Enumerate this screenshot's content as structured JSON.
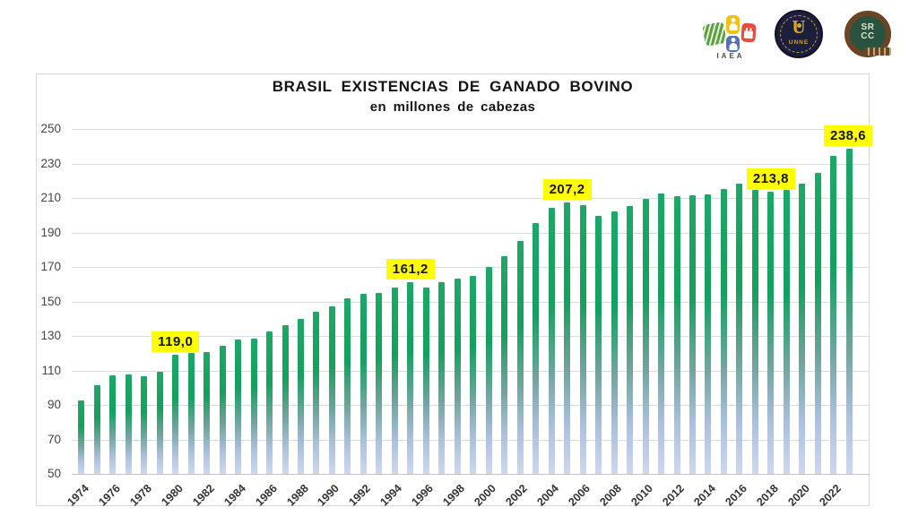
{
  "logos": {
    "iaea": {
      "label": "IAEA"
    },
    "unne": {
      "center_letter": "U",
      "label": "UNNE"
    },
    "srcc": {
      "line1": "SR",
      "line2": "CC"
    }
  },
  "chart": {
    "title": "BRASIL EXISTENCIAS DE GANADO BOVINO",
    "subtitle": "en millones de cabezas"
  },
  "chart_data": {
    "type": "bar",
    "title": "BRASIL EXISTENCIAS DE GANADO BOVINO",
    "subtitle": "en millones de cabezas",
    "unit": "millones de cabezas",
    "x": [
      1974,
      1975,
      1976,
      1977,
      1978,
      1979,
      1980,
      1981,
      1982,
      1983,
      1984,
      1985,
      1986,
      1987,
      1988,
      1989,
      1990,
      1991,
      1992,
      1993,
      1994,
      1995,
      1996,
      1997,
      1998,
      1999,
      2000,
      2001,
      2002,
      2003,
      2004,
      2005,
      2006,
      2007,
      2008,
      2009,
      2010,
      2011,
      2012,
      2013,
      2014,
      2015,
      2016,
      2017,
      2018,
      2019,
      2020,
      2021,
      2022,
      2023
    ],
    "values": [
      92.5,
      101.7,
      107.2,
      107.9,
      106.9,
      109.2,
      119.0,
      120.0,
      120.8,
      124.5,
      128.0,
      128.4,
      132.8,
      136.5,
      139.9,
      144.2,
      147.1,
      152.1,
      154.2,
      155.1,
      158.2,
      161.2,
      158.3,
      161.4,
      163.2,
      164.6,
      169.9,
      176.4,
      185.3,
      195.6,
      204.5,
      207.2,
      205.9,
      199.8,
      202.3,
      205.3,
      209.5,
      212.8,
      211.3,
      211.8,
      212.3,
      215.2,
      218.2,
      214.9,
      213.8,
      214.7,
      218.2,
      224.6,
      234.4,
      238.6
    ],
    "ylim": [
      50,
      250
    ],
    "ytick_step": 20,
    "xtick_labels": [
      1974,
      1976,
      1978,
      1980,
      1982,
      1984,
      1986,
      1988,
      1990,
      1992,
      1994,
      1996,
      1998,
      2000,
      2002,
      2004,
      2006,
      2008,
      2010,
      2012,
      2014,
      2016,
      2018,
      2020,
      2022
    ],
    "grid": "horizontal",
    "legend": "none",
    "bar_color_top": "#14a05d",
    "bar_color_bottom": "#cdd8ef",
    "annotation_bg": "#ffff00",
    "annotations": [
      {
        "x": 1980,
        "label": "119,0"
      },
      {
        "x": 1995,
        "label": "161,2"
      },
      {
        "x": 2005,
        "label": "207,2"
      },
      {
        "x": 2018,
        "label": "213,8"
      },
      {
        "x": 2023,
        "label": "238,6"
      }
    ]
  }
}
